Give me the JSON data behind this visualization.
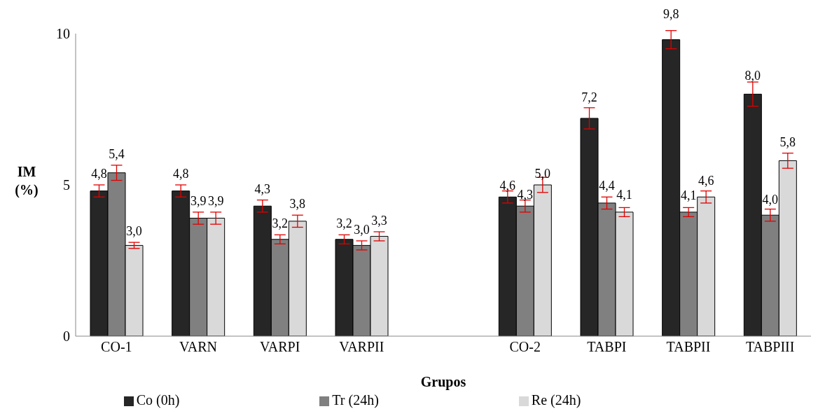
{
  "chart_data": {
    "type": "bar",
    "xlabel": "Grupos",
    "ylabel": "IM (%)",
    "categories": [
      "CO-1",
      "VARN",
      "VARPI",
      "VARPII",
      null,
      "CO-2",
      "TABPI",
      "TABPII",
      "TABPIII"
    ],
    "series": [
      {
        "name": "Co (0h)",
        "color": "#262626",
        "values": [
          4.8,
          4.8,
          4.3,
          3.2,
          null,
          4.6,
          7.2,
          9.8,
          8.0
        ],
        "value_labels": [
          "4,8",
          "4,8",
          "4,3",
          "3,2",
          null,
          "4,6",
          "7,2",
          "9,8",
          "8,0"
        ],
        "errors": [
          0.2,
          0.2,
          0.2,
          0.15,
          null,
          0.2,
          0.35,
          0.3,
          0.4
        ]
      },
      {
        "name": "Tr (24h)",
        "color": "#808080",
        "values": [
          5.4,
          3.9,
          3.2,
          3.0,
          null,
          4.3,
          4.4,
          4.1,
          4.0
        ],
        "value_labels": [
          "5,4",
          "3,9",
          "3,2",
          "3,0",
          null,
          "4,3",
          "4,4",
          "4,1",
          "4,0"
        ],
        "errors": [
          0.25,
          0.2,
          0.15,
          0.15,
          null,
          0.2,
          0.2,
          0.15,
          0.2
        ]
      },
      {
        "name": "Re (24h)",
        "color": "#d9d9d9",
        "values": [
          3.0,
          3.9,
          3.8,
          3.3,
          null,
          5.0,
          4.1,
          4.6,
          5.8
        ],
        "value_labels": [
          "3,0",
          "3,9",
          "3,8",
          "3,3",
          null,
          "5,0",
          "4,1",
          "4,6",
          "5,8"
        ],
        "errors": [
          0.1,
          0.2,
          0.2,
          0.15,
          null,
          0.25,
          0.15,
          0.2,
          0.25
        ]
      }
    ],
    "ylim": [
      0,
      10
    ],
    "yticks": [
      0,
      5,
      10
    ],
    "grid": false,
    "legend": "bottom"
  }
}
